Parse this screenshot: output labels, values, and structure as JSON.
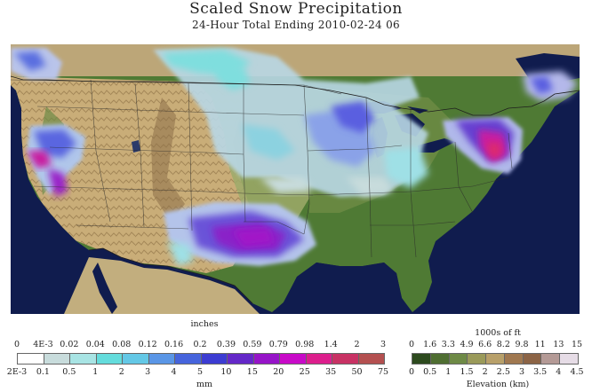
{
  "header": {
    "title": "Scaled Snow Precipitation",
    "subtitle": "24-Hour Total Ending 2010-02-24 06"
  },
  "snow_legend": {
    "top_unit": "inches",
    "bottom_unit": "mm",
    "top_ticks": [
      "0",
      "4E-3",
      "0.02",
      "0.04",
      "0.08",
      "0.12",
      "0.16",
      "0.2",
      "0.39",
      "0.59",
      "0.79",
      "0.98",
      "1.4",
      "2",
      "3"
    ],
    "bottom_ticks": [
      "2E-3",
      "0.1",
      "0.5",
      "1",
      "2",
      "3",
      "4",
      "5",
      "10",
      "15",
      "20",
      "25",
      "35",
      "50",
      "75"
    ],
    "colors": [
      "#ffffff",
      "#c8dcdc",
      "#a8e4e4",
      "#64dcdc",
      "#64c8e6",
      "#5a96e6",
      "#4664dc",
      "#3c3cd2",
      "#6428c8",
      "#9614c8",
      "#c80ac8",
      "#dc1e8c",
      "#c83264",
      "#b45050"
    ]
  },
  "elevation_legend": {
    "top_unit": "1000s of ft",
    "bottom_unit": "Elevation (km)",
    "top_ticks": [
      "0",
      "1.6",
      "3.3",
      "4.9",
      "6.6",
      "8.2",
      "9.8",
      "11",
      "13",
      "15"
    ],
    "bottom_ticks": [
      "0",
      "0.5",
      "1",
      "1.5",
      "2",
      "2.5",
      "3",
      "3.5",
      "4",
      "4.5"
    ],
    "colors": [
      "#2d4a1e",
      "#4f6e32",
      "#6e8a46",
      "#9a9a5a",
      "#b8a06a",
      "#a07850",
      "#8c6446",
      "#b49a96",
      "#e6dce6"
    ]
  }
}
